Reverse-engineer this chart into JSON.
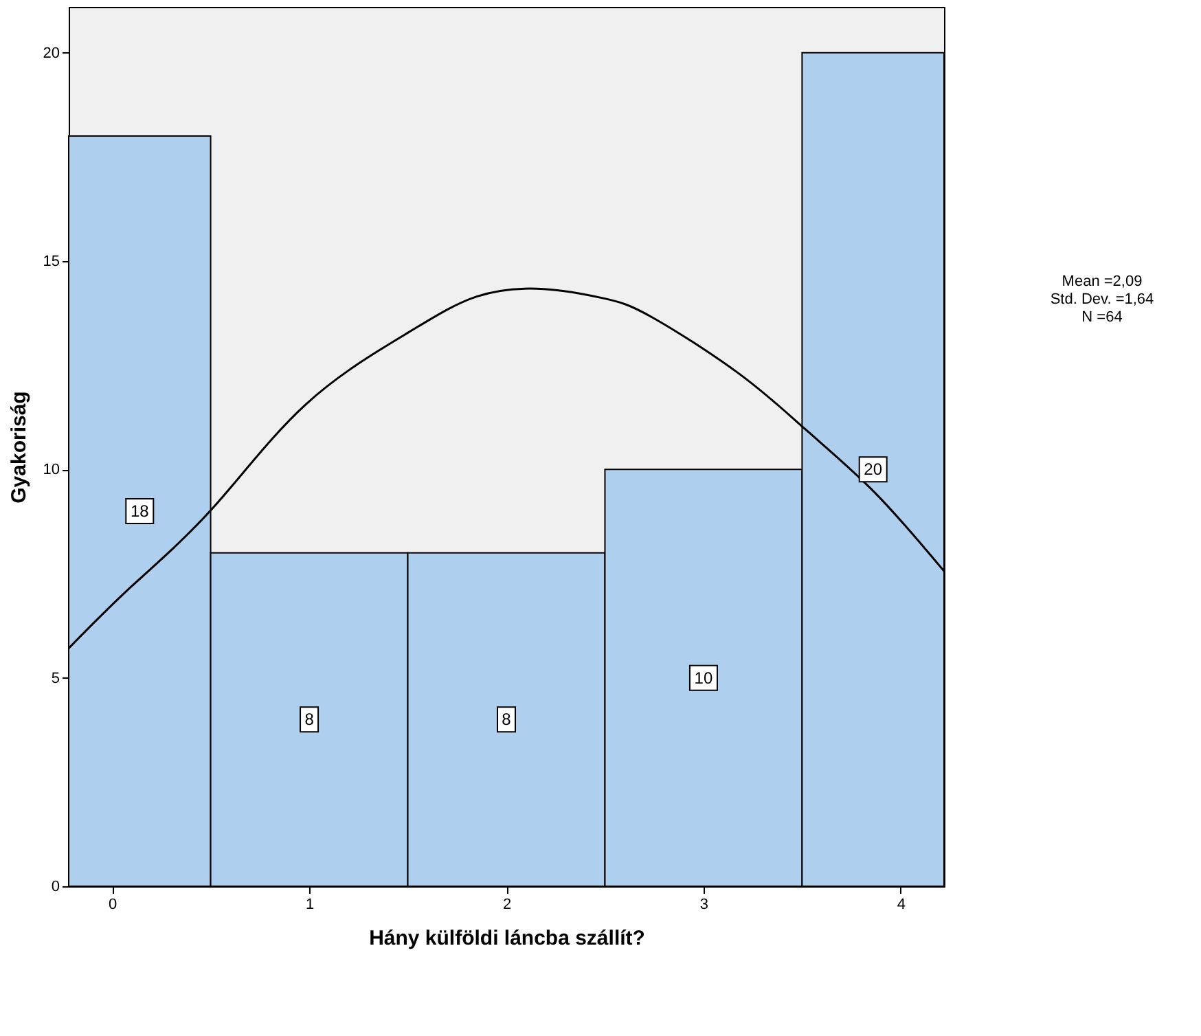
{
  "chart_data": {
    "type": "histogram",
    "xlabel": "Hány külföldi láncba szállít?",
    "ylabel": "Gyakoriság",
    "bins": [
      -0.22,
      0.5,
      1.5,
      2.5,
      3.5,
      4.22
    ],
    "values": [
      18,
      8,
      8,
      10,
      20
    ],
    "color": "#aecfee",
    "value_labels": [
      "18",
      "8",
      "8",
      "10",
      "20"
    ],
    "series": [
      {
        "type": "line",
        "color": "#000000",
        "x": [
          -0.22,
          0.1,
          0.51,
          0.98,
          1.5,
          1.85,
          2.19,
          2.5,
          2.74,
          3.18,
          3.52,
          3.87,
          4.22
        ],
        "values": [
          5.71,
          7.2,
          9.07,
          11.55,
          13.28,
          14.15,
          14.33,
          14.1,
          13.65,
          12.3,
          10.95,
          9.44,
          7.56
        ]
      }
    ],
    "xlim": [
      -0.22,
      4.22
    ],
    "xticks": [
      0,
      1,
      2,
      3,
      4
    ],
    "ylim": [
      0,
      21.1
    ],
    "yticks": [
      0,
      5,
      10,
      15,
      20
    ],
    "grid": false,
    "annotations": [
      "Mean =2,09",
      "Std. Dev. =1,64",
      "N =64"
    ]
  }
}
